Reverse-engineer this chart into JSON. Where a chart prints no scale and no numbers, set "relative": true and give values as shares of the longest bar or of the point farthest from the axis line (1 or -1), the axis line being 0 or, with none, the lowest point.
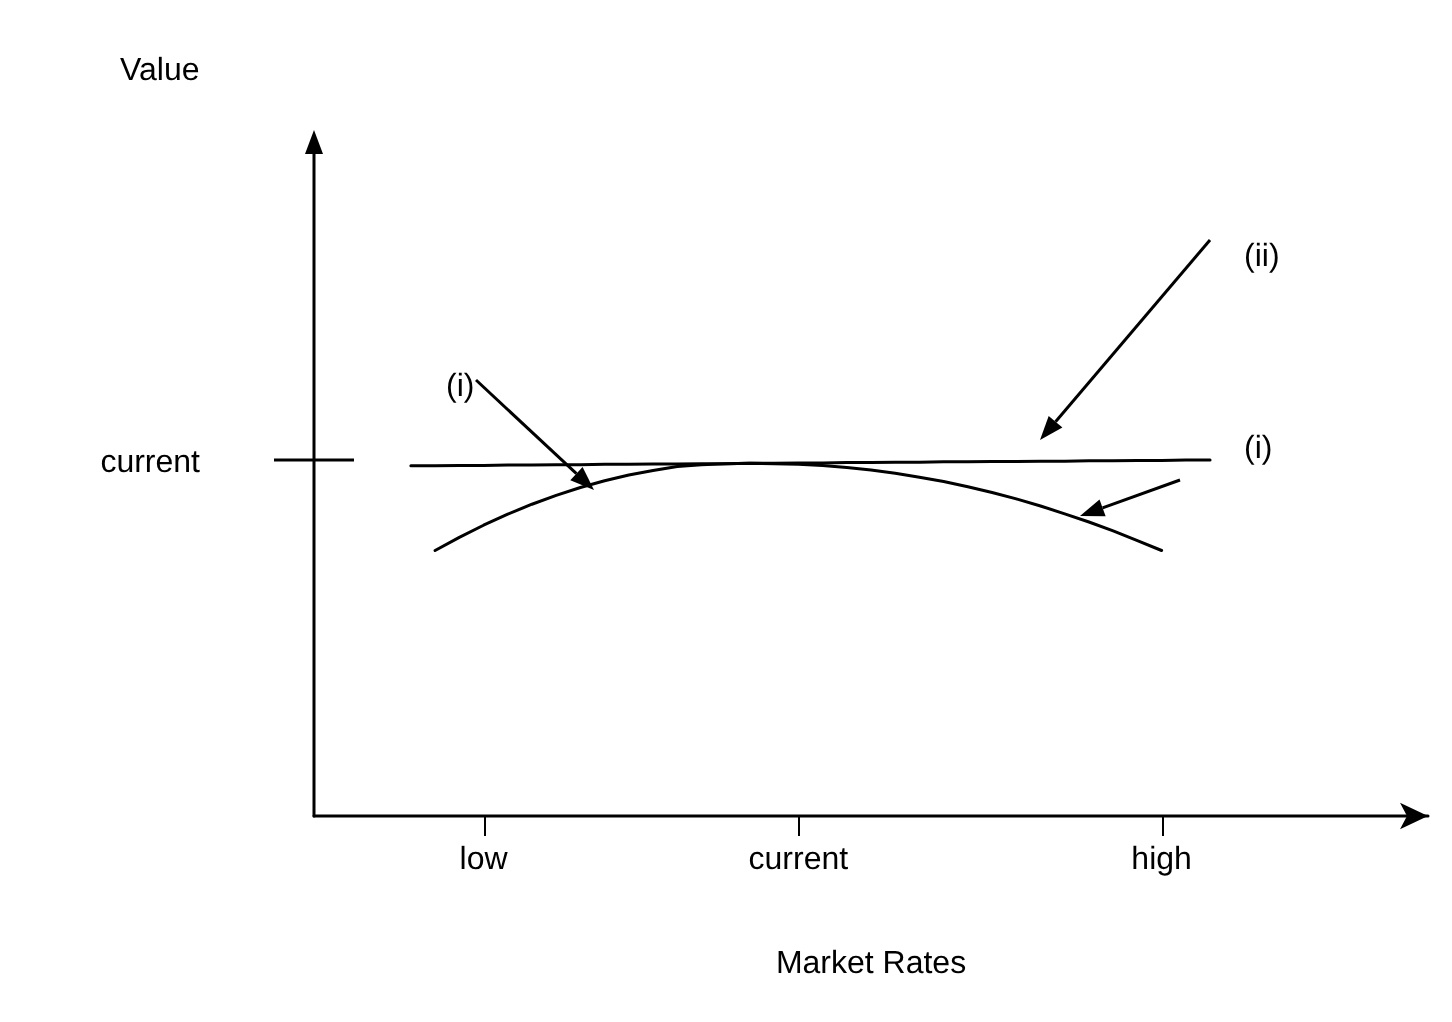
{
  "chart_data": {
    "type": "line",
    "relative": true,
    "xlabel": "Market Rates",
    "categories": [
      null,
      null,
      null,
      null,
      null,
      null,
      null,
      "low",
      null,
      null,
      null,
      null,
      null,
      null,
      null,
      null,
      null,
      null,
      null,
      null,
      "current",
      null,
      null,
      null,
      null,
      null,
      null,
      null,
      null,
      null,
      null,
      null,
      null,
      null,
      null,
      "high",
      null,
      null,
      null,
      null,
      null,
      null,
      null,
      null,
      null,
      null,
      null
    ],
    "tick_labels": "x",
    "grid": false,
    "marker": "none",
    "line_style": "solid",
    "series": [
      {
        "color": "#000000",
        "values": [
          null,
          null,
          null,
          null,
          0.984,
          0.984,
          0.985,
          0.985,
          0.986,
          0.986,
          0.987,
          0.987,
          0.988,
          0.988,
          0.989,
          0.989,
          0.99,
          0.99,
          0.991,
          0.991,
          0.992,
          0.992,
          0.993,
          0.993,
          0.994,
          0.994,
          0.995,
          0.995,
          0.996,
          0.996,
          0.997,
          0.997,
          0.998,
          0.998,
          0.999,
          0.999,
          1.0,
          1.0,
          null,
          null,
          null,
          null,
          null,
          null,
          null,
          null,
          null
        ]
      },
      {
        "color": "#000000",
        "values": [
          null,
          null,
          null,
          null,
          null,
          0.746,
          0.783,
          0.817,
          0.848,
          0.876,
          0.901,
          0.923,
          0.942,
          0.958,
          0.971,
          0.982,
          0.987,
          0.99,
          0.991,
          0.99,
          0.988,
          0.985,
          0.979,
          0.972,
          0.963,
          0.952,
          0.94,
          0.925,
          0.909,
          0.891,
          0.871,
          0.849,
          0.826,
          0.801,
          0.774,
          0.746,
          null,
          null,
          null,
          null,
          null,
          null,
          null,
          null,
          null,
          null,
          null
        ]
      }
    ],
    "annotations": [
      "current",
      "(i)",
      "(ii)",
      "(i)",
      "Value"
    ]
  }
}
